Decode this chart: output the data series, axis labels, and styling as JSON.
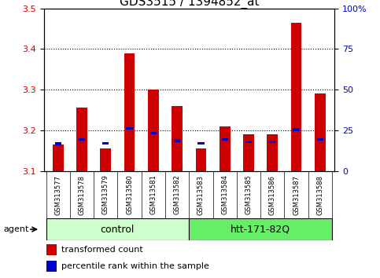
{
  "title": "GDS3515 / 1394852_at",
  "samples": [
    "GSM313577",
    "GSM313578",
    "GSM313579",
    "GSM313580",
    "GSM313581",
    "GSM313582",
    "GSM313583",
    "GSM313584",
    "GSM313585",
    "GSM313586",
    "GSM313587",
    "GSM313588"
  ],
  "red_values": [
    3.165,
    3.255,
    3.155,
    3.39,
    3.3,
    3.26,
    3.155,
    3.21,
    3.19,
    3.19,
    3.465,
    3.29
  ],
  "blue_values": [
    3.167,
    3.178,
    3.168,
    3.205,
    3.193,
    3.175,
    3.168,
    3.178,
    3.172,
    3.172,
    3.202,
    3.178
  ],
  "blue_thickness": 0.007,
  "ylim_left": [
    3.1,
    3.5
  ],
  "ylim_right": [
    0,
    100
  ],
  "yticks_left": [
    3.1,
    3.2,
    3.3,
    3.4,
    3.5
  ],
  "yticks_right": [
    0,
    25,
    50,
    75,
    100
  ],
  "ytick_labels_right": [
    "0",
    "25",
    "50",
    "75",
    "100%"
  ],
  "legend_red": "transformed count",
  "legend_blue": "percentile rank within the sample",
  "bar_width": 0.45,
  "bar_base": 3.1,
  "red_color": "#cc0000",
  "blue_color": "#0000cc",
  "title_fontsize": 11,
  "axis_color_left": "#cc0000",
  "axis_color_right": "#0000cc",
  "tick_area_color": "#c8c8c8",
  "control_color": "#ccffcc",
  "htt_color": "#66ee66",
  "grid_color": "black",
  "grid_linestyle": "dotted",
  "grid_linewidth": 0.8,
  "ytick_fontsize": 8,
  "sample_fontsize": 6,
  "group_fontsize": 9,
  "legend_fontsize": 8
}
